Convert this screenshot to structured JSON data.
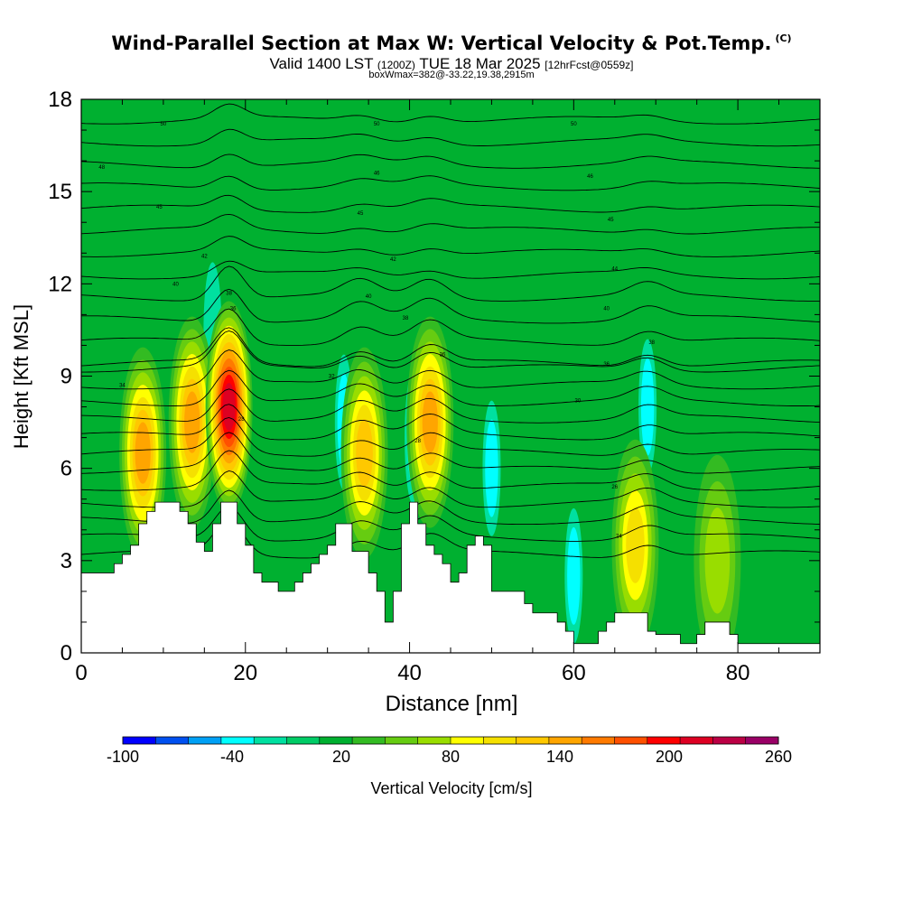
{
  "chart_data": {
    "type": "heatmap",
    "title": "Wind-Parallel Section at Max W: Vertical Velocity & Pot.Temp.",
    "title_mark": "(C)",
    "subtitle_main_a": "Valid 1400 LST",
    "subtitle_small": "(1200Z)",
    "subtitle_main_b": "TUE 18 Mar 2025",
    "subtitle_tag": "[12hrFcst@0559z]",
    "subtitle_line2": "boxWmax=382@-33.22,19.38,2915m",
    "xlabel": "Distance [nm]",
    "ylabel": "Height [Kft MSL]",
    "colorbar_label": "Vertical Velocity [cm/s]",
    "xlim": [
      0,
      90
    ],
    "ylim": [
      0,
      18
    ],
    "x_ticks": [
      0,
      20,
      40,
      60,
      80
    ],
    "y_ticks": [
      0,
      3,
      6,
      9,
      12,
      15,
      18
    ],
    "background_w": 10,
    "colorbar": {
      "levels": [
        -100,
        -80,
        -60,
        -40,
        -20,
        0,
        10,
        20,
        30,
        40,
        60,
        80,
        100,
        120,
        140,
        160,
        180,
        200,
        220,
        240,
        260
      ],
      "tick_labels": [
        "-100",
        "-40",
        "20",
        "80",
        "140",
        "200",
        "260"
      ],
      "colors": [
        "#0000ff",
        "#0050f0",
        "#00a0f5",
        "#00ffff",
        "#00e0a0",
        "#00cc66",
        "#00b030",
        "#33bb22",
        "#66cc11",
        "#99dd00",
        "#ffff00",
        "#f5e000",
        "#ffc800",
        "#ffa500",
        "#ff7a00",
        "#ff5000",
        "#ff0000",
        "#dd0022",
        "#bb0044",
        "#990066"
      ]
    },
    "updrafts": [
      {
        "x": 7.5,
        "z": 6.5,
        "w": 120
      },
      {
        "x": 13.5,
        "z": 7.5,
        "w": 125
      },
      {
        "x": 18,
        "z": 8,
        "w": 215
      },
      {
        "x": 34.5,
        "z": 6.5,
        "w": 115
      },
      {
        "x": 42.5,
        "z": 7.5,
        "w": 130
      },
      {
        "x": 67.5,
        "z": 3.5,
        "w": 80
      },
      {
        "x": 77.5,
        "z": 3,
        "w": 50
      }
    ],
    "downdrafts": [
      {
        "x": 16,
        "z": 10.5,
        "w": -30
      },
      {
        "x": 32,
        "z": 7.5,
        "w": -55
      },
      {
        "x": 40.5,
        "z": 7,
        "w": -75
      },
      {
        "x": 50,
        "z": 6,
        "w": -40
      },
      {
        "x": 60,
        "z": 2.5,
        "w": -40
      },
      {
        "x": 69,
        "z": 8,
        "w": -55
      }
    ],
    "terrain_kft": [
      [
        0,
        2.6
      ],
      [
        3,
        2.6
      ],
      [
        4,
        2.9
      ],
      [
        5,
        3.2
      ],
      [
        6,
        3.5
      ],
      [
        7,
        4.2
      ],
      [
        8,
        4.6
      ],
      [
        9,
        4.9
      ],
      [
        11,
        4.9
      ],
      [
        12,
        4.6
      ],
      [
        13,
        4.2
      ],
      [
        14,
        3.6
      ],
      [
        15,
        3.3
      ],
      [
        16,
        4.2
      ],
      [
        17,
        4.9
      ],
      [
        18,
        4.9
      ],
      [
        19,
        4.2
      ],
      [
        20,
        3.5
      ],
      [
        21,
        2.6
      ],
      [
        22,
        2.3
      ],
      [
        24,
        2.0
      ],
      [
        25,
        2.0
      ],
      [
        26,
        2.3
      ],
      [
        27,
        2.6
      ],
      [
        28,
        2.9
      ],
      [
        29,
        3.2
      ],
      [
        30,
        3.5
      ],
      [
        31,
        4.2
      ],
      [
        32,
        4.2
      ],
      [
        33,
        3.3
      ],
      [
        34,
        3.3
      ],
      [
        35,
        2.6
      ],
      [
        36,
        2.0
      ],
      [
        37,
        1.0
      ],
      [
        38,
        2.0
      ],
      [
        39,
        4.2
      ],
      [
        40,
        4.9
      ],
      [
        41,
        4.2
      ],
      [
        42,
        3.5
      ],
      [
        43,
        3.2
      ],
      [
        44,
        2.9
      ],
      [
        45,
        2.3
      ],
      [
        46,
        2.6
      ],
      [
        47,
        3.5
      ],
      [
        48,
        3.8
      ],
      [
        49,
        3.5
      ],
      [
        50,
        2.0
      ],
      [
        53,
        2.0
      ],
      [
        54,
        1.6
      ],
      [
        55,
        1.3
      ],
      [
        57,
        1.3
      ],
      [
        58,
        1.0
      ],
      [
        59,
        0.7
      ],
      [
        60,
        0.3
      ],
      [
        62,
        0.3
      ],
      [
        63,
        0.7
      ],
      [
        64,
        1.0
      ],
      [
        65,
        1.3
      ],
      [
        68,
        1.3
      ],
      [
        69,
        0.7
      ],
      [
        70,
        0.6
      ],
      [
        72,
        0.6
      ],
      [
        73,
        0.3
      ],
      [
        74,
        0.3
      ],
      [
        75,
        0.6
      ],
      [
        76,
        1.0
      ],
      [
        78,
        1.0
      ],
      [
        79,
        0.6
      ],
      [
        80,
        0.3
      ],
      [
        90,
        0.3
      ]
    ],
    "theta_contour_labels": [
      {
        "x": 10,
        "z": 17.2,
        "text": "50"
      },
      {
        "x": 36,
        "z": 17.2,
        "text": "50"
      },
      {
        "x": 60,
        "z": 17.2,
        "text": "50"
      },
      {
        "x": 2.5,
        "z": 15.8,
        "text": "48"
      },
      {
        "x": 36,
        "z": 15.6,
        "text": "46"
      },
      {
        "x": 62,
        "z": 15.5,
        "text": "46"
      },
      {
        "x": 9.5,
        "z": 14.5,
        "text": "45"
      },
      {
        "x": 34,
        "z": 14.3,
        "text": "45"
      },
      {
        "x": 64.5,
        "z": 14.1,
        "text": "45"
      },
      {
        "x": 15,
        "z": 12.9,
        "text": "42"
      },
      {
        "x": 38,
        "z": 12.8,
        "text": "42"
      },
      {
        "x": 65,
        "z": 12.5,
        "text": "44"
      },
      {
        "x": 11.5,
        "z": 12.0,
        "text": "40"
      },
      {
        "x": 35,
        "z": 11.6,
        "text": "40"
      },
      {
        "x": 64,
        "z": 11.2,
        "text": "40"
      },
      {
        "x": 18,
        "z": 11.7,
        "text": "38"
      },
      {
        "x": 39.5,
        "z": 10.9,
        "text": "38"
      },
      {
        "x": 69.5,
        "z": 10.1,
        "text": "38"
      },
      {
        "x": 18.5,
        "z": 11.2,
        "text": "36"
      },
      {
        "x": 44,
        "z": 9.7,
        "text": "36"
      },
      {
        "x": 64,
        "z": 9.4,
        "text": "36"
      },
      {
        "x": 5,
        "z": 8.7,
        "text": "34"
      },
      {
        "x": 30.5,
        "z": 9.0,
        "text": "32"
      },
      {
        "x": 60.5,
        "z": 8.2,
        "text": "30"
      },
      {
        "x": 19.5,
        "z": 7.6,
        "text": "28"
      },
      {
        "x": 41,
        "z": 6.9,
        "text": "28"
      },
      {
        "x": 65,
        "z": 5.4,
        "text": "26"
      },
      {
        "x": 65.5,
        "z": 3.8,
        "text": "24"
      }
    ]
  }
}
